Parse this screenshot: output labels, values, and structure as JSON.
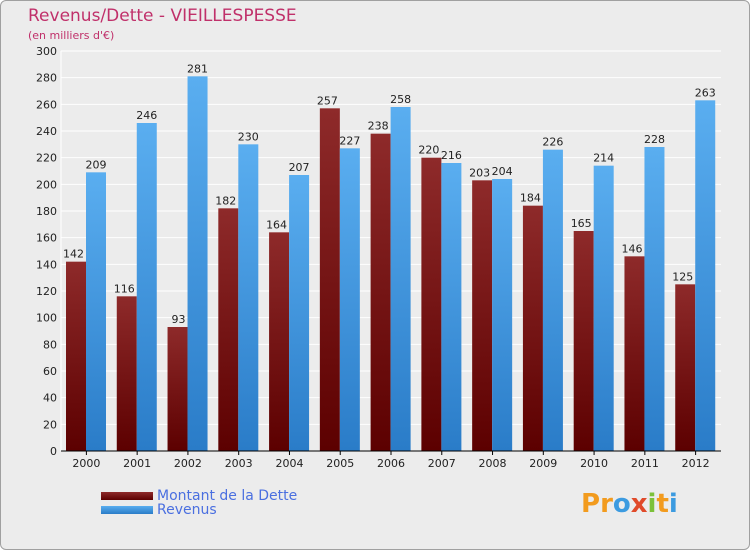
{
  "chart_data": {
    "type": "bar",
    "title": "Revenus/Dette - VIEILLESPESSE",
    "subtitle": "(en milliers d'€)",
    "xlabel": "",
    "ylabel": "",
    "ylim": [
      0,
      300
    ],
    "ytick_step": 20,
    "grid": true,
    "legend_position": "bottom-left",
    "categories": [
      "2000",
      "2001",
      "2002",
      "2003",
      "2004",
      "2005",
      "2006",
      "2007",
      "2008",
      "2009",
      "2010",
      "2011",
      "2012"
    ],
    "series": [
      {
        "name": "Montant de la Dette",
        "color": "#8b1a1a",
        "values": [
          142,
          116,
          93,
          182,
          164,
          257,
          238,
          220,
          203,
          184,
          165,
          146,
          125
        ]
      },
      {
        "name": "Revenus",
        "color": "#4a9fe6",
        "values": [
          209,
          246,
          281,
          230,
          207,
          227,
          258,
          216,
          204,
          226,
          214,
          228,
          263
        ]
      }
    ]
  },
  "branding": {
    "logo_text": "Proxiti"
  }
}
